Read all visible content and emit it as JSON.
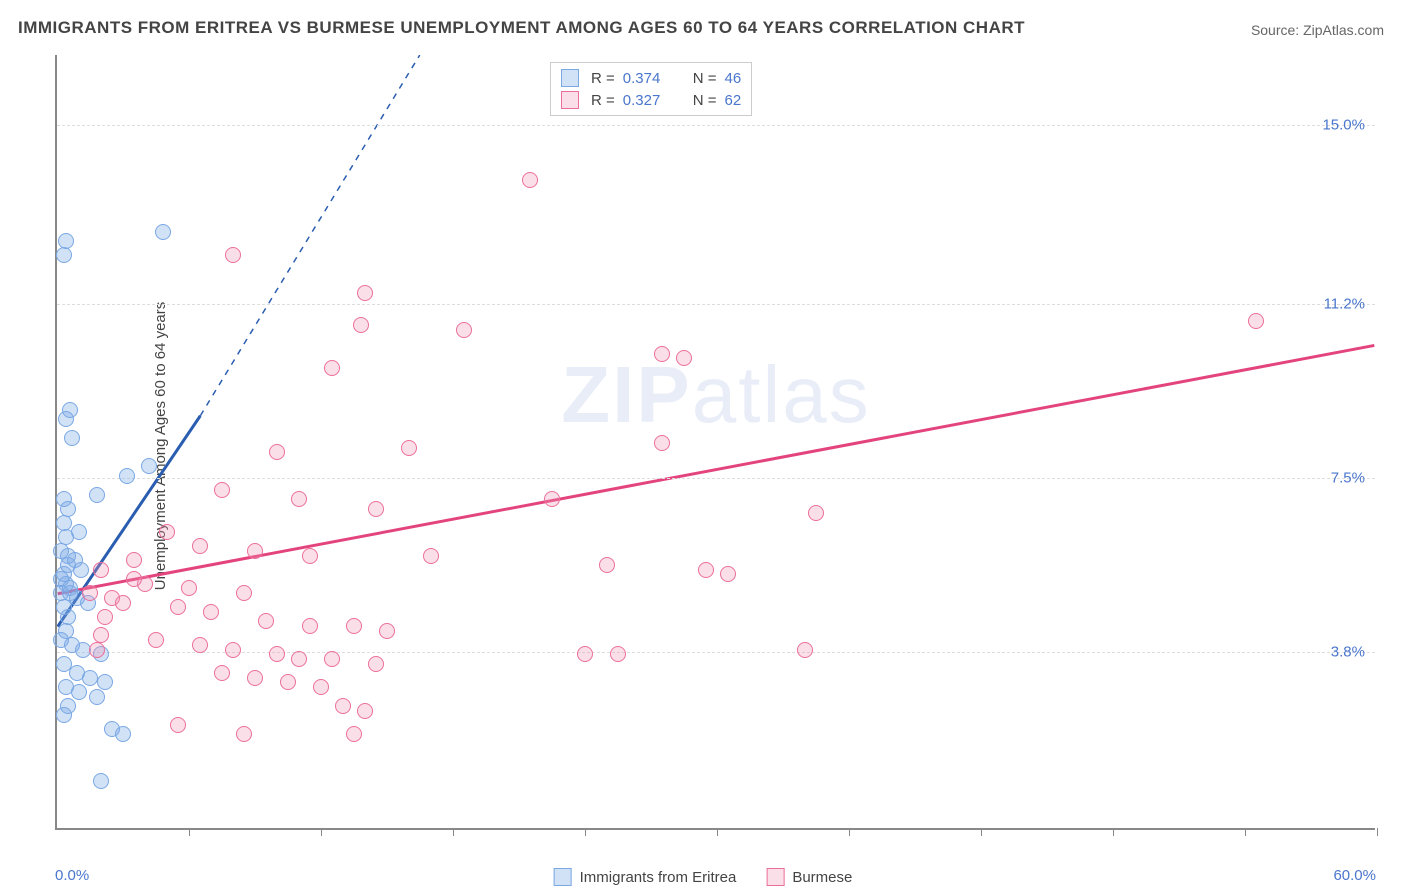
{
  "title": "IMMIGRANTS FROM ERITREA VS BURMESE UNEMPLOYMENT AMONG AGES 60 TO 64 YEARS CORRELATION CHART",
  "source": "Source: ZipAtlas.com",
  "ylabel": "Unemployment Among Ages 60 to 64 years",
  "watermark_bold": "ZIP",
  "watermark_light": "atlas",
  "chart": {
    "type": "scatter",
    "xlim": [
      0,
      60
    ],
    "ylim": [
      0,
      16.5
    ],
    "x_min_label": "0.0%",
    "x_max_label": "60.0%",
    "yticks": [
      {
        "value": 3.8,
        "label": "3.8%"
      },
      {
        "value": 7.5,
        "label": "7.5%"
      },
      {
        "value": 11.2,
        "label": "11.2%"
      },
      {
        "value": 15.0,
        "label": "15.0%"
      }
    ],
    "xtick_positions": [
      6,
      12,
      18,
      24,
      30,
      36,
      42,
      48,
      54,
      60
    ],
    "background_color": "#ffffff",
    "grid_color": "#dddddd",
    "axis_color": "#888888",
    "tick_label_color": "#4a76cc",
    "series": [
      {
        "name": "Immigrants from Eritrea",
        "fill": "rgba(122,168,228,0.35)",
        "stroke": "#7aa8e4",
        "line_color": "#2a5db0",
        "r": 0.374,
        "n": 46,
        "trend": {
          "x1": 0,
          "y1": 4.3,
          "x2": 6.5,
          "y2": 8.8,
          "dash_to_x": 16.5,
          "dash_to_y": 16.5
        },
        "points": [
          [
            0.3,
            12.2
          ],
          [
            0.4,
            12.5
          ],
          [
            4.8,
            12.7
          ],
          [
            0.6,
            8.9
          ],
          [
            0.4,
            8.7
          ],
          [
            0.7,
            8.3
          ],
          [
            0.3,
            7.0
          ],
          [
            0.5,
            6.8
          ],
          [
            1.8,
            7.1
          ],
          [
            3.2,
            7.5
          ],
          [
            4.2,
            7.7
          ],
          [
            0.4,
            6.2
          ],
          [
            1.0,
            6.3
          ],
          [
            0.2,
            5.9
          ],
          [
            0.5,
            5.6
          ],
          [
            0.8,
            5.7
          ],
          [
            0.3,
            5.4
          ],
          [
            1.1,
            5.5
          ],
          [
            0.4,
            5.2
          ],
          [
            0.6,
            5.1
          ],
          [
            0.2,
            5.0
          ],
          [
            0.9,
            4.9
          ],
          [
            0.3,
            4.7
          ],
          [
            0.5,
            4.5
          ],
          [
            0.4,
            4.2
          ],
          [
            0.2,
            4.0
          ],
          [
            0.7,
            3.9
          ],
          [
            1.2,
            3.8
          ],
          [
            2.0,
            3.7
          ],
          [
            0.3,
            3.5
          ],
          [
            0.9,
            3.3
          ],
          [
            1.5,
            3.2
          ],
          [
            2.2,
            3.1
          ],
          [
            0.4,
            3.0
          ],
          [
            1.0,
            2.9
          ],
          [
            1.8,
            2.8
          ],
          [
            0.5,
            2.6
          ],
          [
            0.3,
            2.4
          ],
          [
            0.2,
            5.3
          ],
          [
            0.6,
            5.0
          ],
          [
            1.4,
            4.8
          ],
          [
            2.5,
            2.1
          ],
          [
            3.0,
            2.0
          ],
          [
            2.0,
            1.0
          ],
          [
            0.5,
            5.8
          ],
          [
            0.3,
            6.5
          ]
        ]
      },
      {
        "name": "Burmese",
        "fill": "rgba(240,150,180,0.30)",
        "stroke": "#ec6f9b",
        "line_color": "#e4447d",
        "r": 0.327,
        "n": 62,
        "trend": {
          "x1": 0,
          "y1": 5.0,
          "x2": 60,
          "y2": 10.3
        },
        "points": [
          [
            21.5,
            13.8
          ],
          [
            8.0,
            12.2
          ],
          [
            14.0,
            11.4
          ],
          [
            13.8,
            10.7
          ],
          [
            18.5,
            10.6
          ],
          [
            54.5,
            10.8
          ],
          [
            27.5,
            10.1
          ],
          [
            28.5,
            10.0
          ],
          [
            12.5,
            9.8
          ],
          [
            16.0,
            8.1
          ],
          [
            10.0,
            8.0
          ],
          [
            27.5,
            8.2
          ],
          [
            7.5,
            7.2
          ],
          [
            11.0,
            7.0
          ],
          [
            14.5,
            6.8
          ],
          [
            22.5,
            7.0
          ],
          [
            34.5,
            6.7
          ],
          [
            5.0,
            6.3
          ],
          [
            6.5,
            6.0
          ],
          [
            9.0,
            5.9
          ],
          [
            11.5,
            5.8
          ],
          [
            17.0,
            5.8
          ],
          [
            3.5,
            5.7
          ],
          [
            25.0,
            5.6
          ],
          [
            29.5,
            5.5
          ],
          [
            30.5,
            5.4
          ],
          [
            4.0,
            5.2
          ],
          [
            6.0,
            5.1
          ],
          [
            8.5,
            5.0
          ],
          [
            2.5,
            4.9
          ],
          [
            3.0,
            4.8
          ],
          [
            5.5,
            4.7
          ],
          [
            7.0,
            4.6
          ],
          [
            9.5,
            4.4
          ],
          [
            11.5,
            4.3
          ],
          [
            13.5,
            4.3
          ],
          [
            15.0,
            4.2
          ],
          [
            2.0,
            4.1
          ],
          [
            4.5,
            4.0
          ],
          [
            6.5,
            3.9
          ],
          [
            8.0,
            3.8
          ],
          [
            10.0,
            3.7
          ],
          [
            11.0,
            3.6
          ],
          [
            12.5,
            3.6
          ],
          [
            14.5,
            3.5
          ],
          [
            24.0,
            3.7
          ],
          [
            25.5,
            3.7
          ],
          [
            34.0,
            3.8
          ],
          [
            7.5,
            3.3
          ],
          [
            9.0,
            3.2
          ],
          [
            10.5,
            3.1
          ],
          [
            12.0,
            3.0
          ],
          [
            13.0,
            2.6
          ],
          [
            14.0,
            2.5
          ],
          [
            5.5,
            2.2
          ],
          [
            8.5,
            2.0
          ],
          [
            13.5,
            2.0
          ],
          [
            2.0,
            5.5
          ],
          [
            3.5,
            5.3
          ],
          [
            1.5,
            5.0
          ],
          [
            2.2,
            4.5
          ],
          [
            1.8,
            3.8
          ]
        ]
      }
    ]
  },
  "legend_bottom": [
    {
      "label": "Immigrants from Eritrea",
      "fill": "rgba(122,168,228,0.35)",
      "stroke": "#7aa8e4"
    },
    {
      "label": "Burmese",
      "fill": "rgba(240,150,180,0.30)",
      "stroke": "#ec6f9b"
    }
  ]
}
